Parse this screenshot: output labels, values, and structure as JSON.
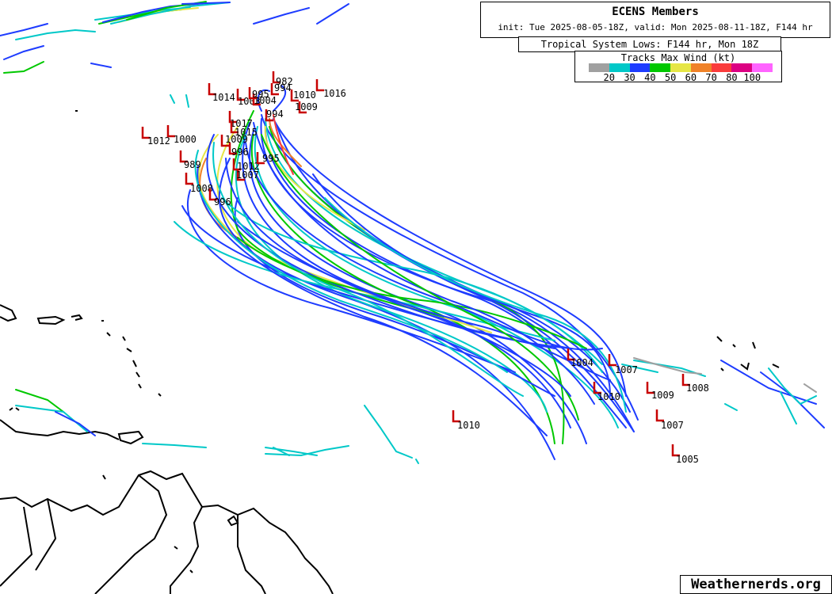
{
  "header": {
    "title": "ECENS Members",
    "subtitle": "init: Tue 2025-08-05-18Z, valid: Mon 2025-08-11-18Z, F144 hr"
  },
  "subheader": {
    "text": "Tropical System Lows: F144 hr, Mon 18Z"
  },
  "legend": {
    "title": "Tracks Max Wind (kt)",
    "colors": [
      "#a0a0a0",
      "#00c8c8",
      "#1e3cff",
      "#00c800",
      "#e6e646",
      "#f08228",
      "#fa3c3c",
      "#dc0082",
      "#ff64ff"
    ],
    "ticks": [
      "20",
      "30",
      "40",
      "50",
      "60",
      "70",
      "80",
      "100"
    ]
  },
  "credit": "Weathernerds.org",
  "lows": [
    {
      "label": "982"
    },
    {
      "label": "994"
    },
    {
      "label": "1016"
    },
    {
      "label": "1010"
    },
    {
      "label": "1009"
    },
    {
      "label": "1014"
    },
    {
      "label": "1003"
    },
    {
      "label": "1004"
    },
    {
      "label": "995"
    },
    {
      "label": "994"
    },
    {
      "label": "1017"
    },
    {
      "label": "1015"
    },
    {
      "label": "1012"
    },
    {
      "label": "1000"
    },
    {
      "label": "1009"
    },
    {
      "label": "996"
    },
    {
      "label": "989"
    },
    {
      "label": "1012"
    },
    {
      "label": "995"
    },
    {
      "label": "1007"
    },
    {
      "label": "1008"
    },
    {
      "label": "996"
    },
    {
      "label": "1004"
    },
    {
      "label": "1007"
    },
    {
      "label": "1010"
    },
    {
      "label": "1009"
    },
    {
      "label": "1008"
    },
    {
      "label": "1010"
    },
    {
      "label": "1007"
    },
    {
      "label": "1005"
    }
  ]
}
